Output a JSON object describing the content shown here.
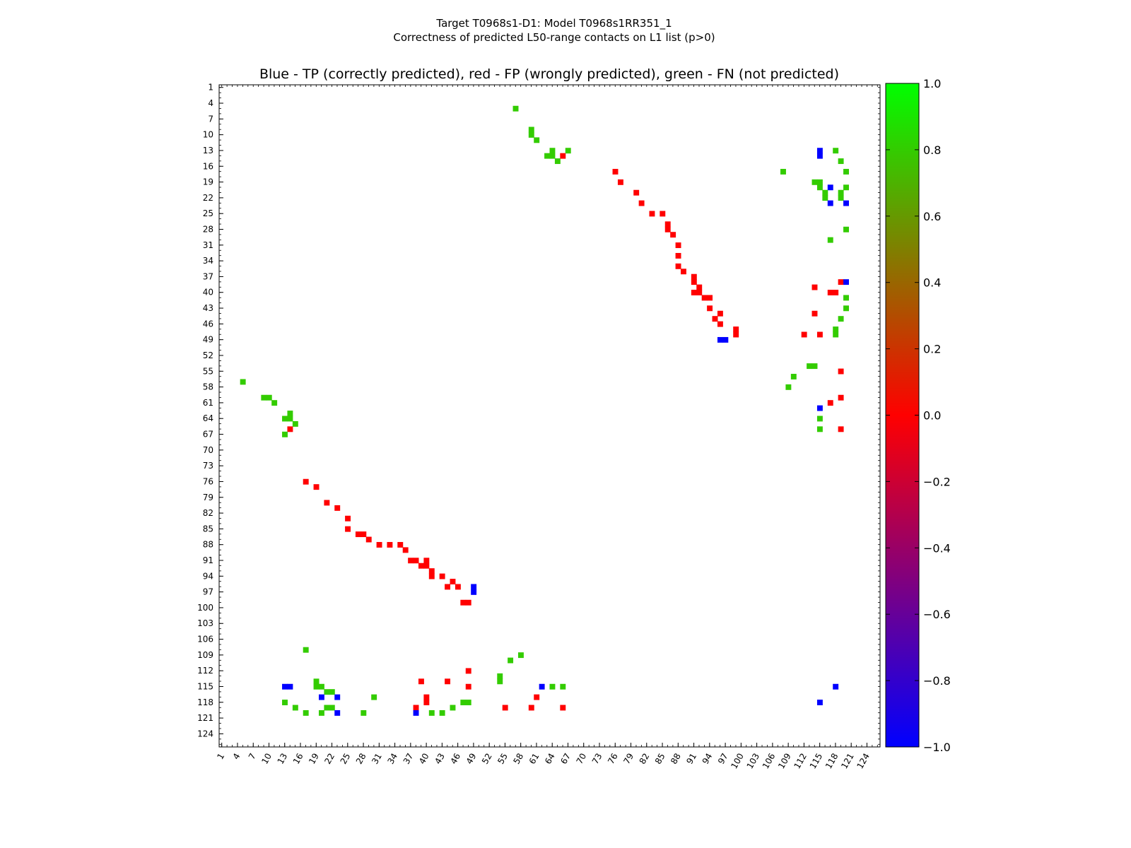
{
  "chart_data": {
    "type": "heatmap",
    "suptitle_line1": "Target T0968s1-D1: Model T0968s1RR351_1",
    "suptitle_line2": "Correctness of predicted L50-range contacts on L1 list (p>0)",
    "title": "Blue - TP (correctly predicted), red - FP (wrongly predicted), green - FN (not predicted)",
    "xlabel": "",
    "ylabel": "",
    "matrix_size": 126,
    "tick_labels": [
      "1",
      "4",
      "7",
      "10",
      "13",
      "16",
      "19",
      "22",
      "25",
      "28",
      "31",
      "34",
      "37",
      "40",
      "43",
      "46",
      "49",
      "52",
      "55",
      "58",
      "61",
      "64",
      "67",
      "70",
      "73",
      "76",
      "79",
      "82",
      "85",
      "88",
      "91",
      "94",
      "97",
      "100",
      "103",
      "106",
      "109",
      "112",
      "115",
      "118",
      "121",
      "124"
    ],
    "colorbar": {
      "min": -1.0,
      "max": 1.0,
      "ticks": [
        "1.0",
        "0.8",
        "0.6",
        "0.4",
        "0.2",
        "0.0",
        "−0.2",
        "−0.4",
        "−0.6",
        "−0.8",
        "−1.0"
      ],
      "colors": {
        "low": "#0000ff",
        "mid": "#ff0000",
        "high": "#00ff00"
      }
    },
    "legend": {
      "TP": {
        "value": -1,
        "color": "#0000ff"
      },
      "FP": {
        "value": 0,
        "color": "#ff0000"
      },
      "FN": {
        "value": 1,
        "color": "#33cc00"
      }
    },
    "contacts_TP": [
      [
        13,
        115
      ],
      [
        14,
        115
      ],
      [
        20,
        117
      ],
      [
        23,
        120
      ],
      [
        49,
        96
      ],
      [
        49,
        97
      ],
      [
        62,
        115
      ],
      [
        115,
        118
      ],
      [
        117,
        23
      ],
      [
        120,
        38
      ]
    ],
    "contacts_FP": [
      [
        14,
        66
      ],
      [
        17,
        76
      ],
      [
        19,
        77
      ],
      [
        21,
        80
      ],
      [
        23,
        81
      ],
      [
        25,
        83
      ],
      [
        25,
        85
      ],
      [
        27,
        86
      ],
      [
        28,
        86
      ],
      [
        29,
        87
      ],
      [
        31,
        88
      ],
      [
        33,
        88
      ],
      [
        35,
        88
      ],
      [
        36,
        89
      ],
      [
        37,
        91
      ],
      [
        38,
        91
      ],
      [
        39,
        92
      ],
      [
        40,
        91
      ],
      [
        40,
        92
      ],
      [
        41,
        93
      ],
      [
        41,
        94
      ],
      [
        43,
        94
      ],
      [
        44,
        96
      ],
      [
        45,
        95
      ],
      [
        46,
        96
      ],
      [
        47,
        99
      ],
      [
        48,
        99
      ],
      [
        48,
        112
      ],
      [
        48,
        115
      ],
      [
        44,
        114
      ],
      [
        38,
        119
      ],
      [
        39,
        114
      ],
      [
        40,
        118
      ],
      [
        40,
        117
      ],
      [
        55,
        119
      ],
      [
        60,
        119
      ],
      [
        61,
        117
      ],
      [
        66,
        119
      ]
    ],
    "contacts_FN": [
      [
        5,
        57
      ],
      [
        9,
        60
      ],
      [
        10,
        60
      ],
      [
        11,
        61
      ],
      [
        13,
        64
      ],
      [
        14,
        64
      ],
      [
        14,
        63
      ],
      [
        15,
        65
      ],
      [
        13,
        67
      ],
      [
        17,
        108
      ],
      [
        19,
        114
      ],
      [
        19,
        115
      ],
      [
        20,
        115
      ],
      [
        21,
        116
      ],
      [
        22,
        116
      ],
      [
        13,
        118
      ],
      [
        15,
        119
      ],
      [
        17,
        120
      ],
      [
        20,
        120
      ],
      [
        21,
        119
      ],
      [
        22,
        119
      ],
      [
        28,
        120
      ],
      [
        30,
        117
      ],
      [
        41,
        120
      ],
      [
        43,
        120
      ],
      [
        45,
        119
      ],
      [
        47,
        118
      ],
      [
        48,
        118
      ],
      [
        54,
        113
      ],
      [
        54,
        114
      ],
      [
        56,
        110
      ],
      [
        58,
        109
      ],
      [
        64,
        115
      ],
      [
        66,
        115
      ]
    ]
  }
}
